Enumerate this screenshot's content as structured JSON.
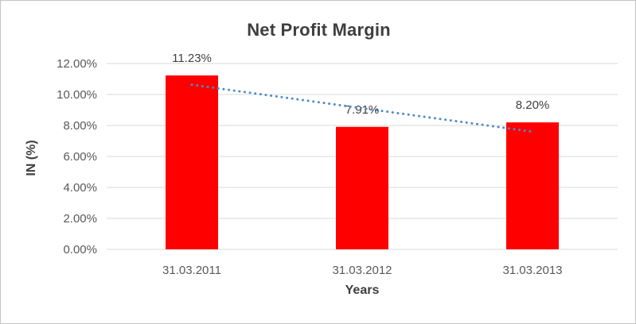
{
  "window": {
    "background": "#ffffff",
    "border_color": "#c3c3c3"
  },
  "chart_data": {
    "type": "bar",
    "title": "Net Profit Margin",
    "xlabel": "Years",
    "ylabel": "IN (%)",
    "categories": [
      "31.03.2011",
      "31.03.2012",
      "31.03.2013"
    ],
    "values": [
      11.23,
      7.91,
      8.2
    ],
    "value_labels": [
      "11.23%",
      "7.91%",
      "8.20%"
    ],
    "y_ticks": [
      "0.00%",
      "2.00%",
      "4.00%",
      "6.00%",
      "8.00%",
      "10.00%",
      "12.00%"
    ],
    "ylim": [
      0,
      12
    ],
    "y_tick_step": 2,
    "grid": true,
    "legend": "none",
    "colors": {
      "bar": "#ff0000",
      "trendline": "#4e8acb",
      "gridline": "#d9d9d9",
      "tick_label": "#595959",
      "data_label": "#404040",
      "title": "#3f3f3f"
    },
    "trendline": {
      "type": "linear",
      "style": "dotted"
    }
  }
}
